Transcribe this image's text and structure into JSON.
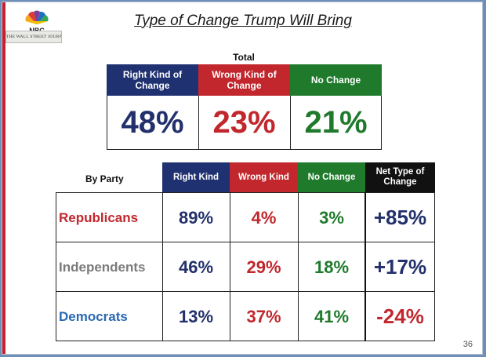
{
  "title": "Type of Change Trump Will Bring",
  "logo": {
    "network": "NBC",
    "partner": "THE WALL STREET JOURNAL."
  },
  "page_number": "36",
  "colors": {
    "navy": "#1f3170",
    "red": "#c1272d",
    "green": "#1f7a2c",
    "black": "#111111"
  },
  "chart_data": [
    {
      "type": "table",
      "title": "Total",
      "columns": [
        "Right Kind of Change",
        "Wrong Kind of Change",
        "No Change"
      ],
      "values": [
        48,
        23,
        21
      ],
      "display": [
        "48%",
        "23%",
        "21%"
      ]
    },
    {
      "type": "table",
      "title": "By Party",
      "columns": [
        "Right Kind",
        "Wrong Kind",
        "No Change",
        "Net Type of Change"
      ],
      "rows": [
        {
          "label": "Republicans",
          "values": [
            89,
            4,
            3,
            85
          ],
          "display": [
            "89%",
            "4%",
            "3%",
            "+85%"
          ]
        },
        {
          "label": "Independents",
          "values": [
            46,
            29,
            18,
            17
          ],
          "display": [
            "46%",
            "29%",
            "18%",
            "+17%"
          ]
        },
        {
          "label": "Democrats",
          "values": [
            13,
            37,
            41,
            -24
          ],
          "display": [
            "13%",
            "37%",
            "41%",
            "-24%"
          ]
        }
      ]
    }
  ]
}
